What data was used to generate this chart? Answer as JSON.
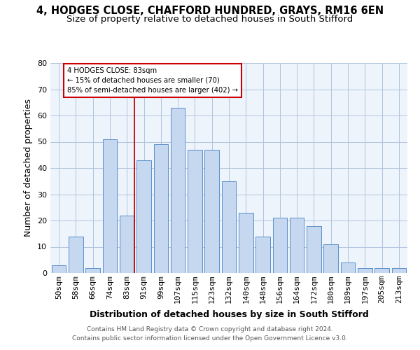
{
  "title1": "4, HODGES CLOSE, CHAFFORD HUNDRED, GRAYS, RM16 6EN",
  "title2": "Size of property relative to detached houses in South Stifford",
  "xlabel": "Distribution of detached houses by size in South Stifford",
  "ylabel": "Number of detached properties",
  "footer1": "Contains HM Land Registry data © Crown copyright and database right 2024.",
  "footer2": "Contains public sector information licensed under the Open Government Licence v3.0.",
  "categories": [
    "50sqm",
    "58sqm",
    "66sqm",
    "74sqm",
    "83sqm",
    "91sqm",
    "99sqm",
    "107sqm",
    "115sqm",
    "123sqm",
    "132sqm",
    "140sqm",
    "148sqm",
    "156sqm",
    "164sqm",
    "172sqm",
    "180sqm",
    "189sqm",
    "197sqm",
    "205sqm",
    "213sqm"
  ],
  "values": [
    3,
    14,
    2,
    51,
    22,
    43,
    49,
    63,
    47,
    47,
    35,
    23,
    14,
    21,
    21,
    18,
    11,
    4,
    2,
    2,
    2
  ],
  "bar_color": "#c5d8f0",
  "bar_edge_color": "#5b8fc9",
  "highlight_index": 4,
  "highlight_color": "#cc0000",
  "annotation_line1": "4 HODGES CLOSE: 83sqm",
  "annotation_line2": "← 15% of detached houses are smaller (70)",
  "annotation_line3": "85% of semi-detached houses are larger (402) →",
  "annotation_box_color": "#cc0000",
  "ylim": [
    0,
    80
  ],
  "yticks": [
    0,
    10,
    20,
    30,
    40,
    50,
    60,
    70,
    80
  ],
  "grid_color": "#b0c4de",
  "bg_color": "#eef4fb",
  "title1_fontsize": 10.5,
  "title2_fontsize": 9.5,
  "xlabel_fontsize": 9,
  "ylabel_fontsize": 9,
  "tick_fontsize": 8,
  "footer_fontsize": 6.5
}
